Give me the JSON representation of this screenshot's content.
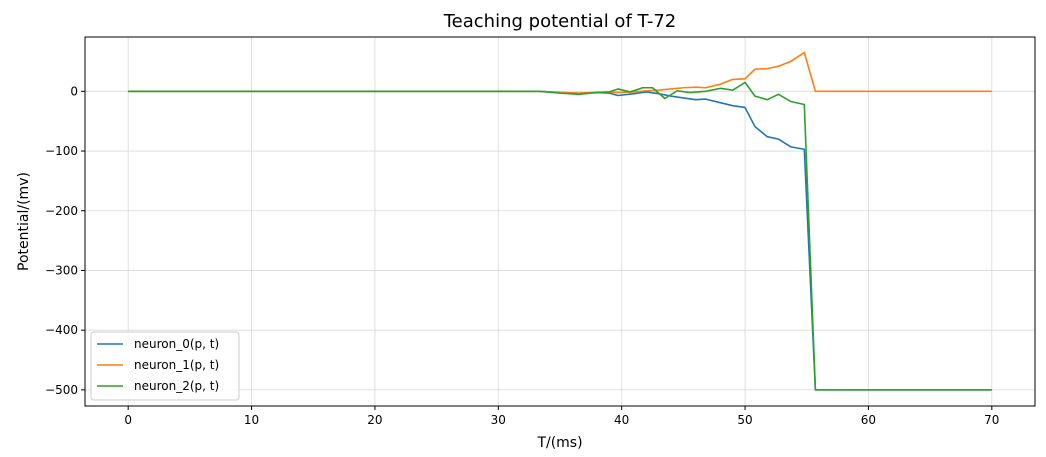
{
  "chart_data": {
    "type": "line",
    "title": "Teaching potential of T-72",
    "xlabel": "T/(ms)",
    "ylabel": "Potential/(mv)",
    "xlim": [
      -3.5,
      73.5
    ],
    "ylim": [
      -527,
      91
    ],
    "xticks": [
      0,
      10,
      20,
      30,
      40,
      50,
      60,
      70
    ],
    "yticks": [
      0,
      -100,
      -200,
      -300,
      -400,
      -500
    ],
    "grid": true,
    "legend_position": "lower-left",
    "series": [
      {
        "name": "neuron_0(p, t)",
        "color": "#1f77b4",
        "x": [
          0,
          33.3,
          35,
          36.5,
          38,
          39,
          39.7,
          41,
          42,
          43,
          44,
          45,
          46,
          46.8,
          48,
          49,
          50,
          50.8,
          51.8,
          52.7,
          53.7,
          54.8,
          55.7,
          70
        ],
        "y": [
          0,
          0,
          -2,
          -3,
          -2,
          -3,
          -7,
          -4,
          -1,
          -4,
          -8,
          -11,
          -14,
          -13,
          -19,
          -24,
          -27,
          -59,
          -76,
          -80,
          -93,
          -97,
          -500,
          -500
        ]
      },
      {
        "name": "neuron_1(p, t)",
        "color": "#ff7f0e",
        "x": [
          0,
          33.3,
          35,
          36.5,
          38,
          39,
          39.7,
          41,
          42,
          43,
          44,
          45,
          46,
          46.8,
          48,
          49,
          50,
          50.8,
          51.8,
          52.7,
          53.7,
          54.8,
          55.7,
          70
        ],
        "y": [
          0,
          0,
          -2,
          -3,
          -2,
          -1,
          -2,
          -1,
          1,
          2,
          4,
          6,
          7,
          6,
          12,
          20,
          21,
          37,
          38,
          42,
          50,
          65,
          0,
          0
        ]
      },
      {
        "name": "neuron_2(p, t)",
        "color": "#2ca02c",
        "x": [
          0,
          33.3,
          35,
          36.5,
          38,
          39,
          39.7,
          40.7,
          41.7,
          42.5,
          43.5,
          44.5,
          45.5,
          46.8,
          48,
          49,
          50,
          50.8,
          51.8,
          52.7,
          53.7,
          54.8,
          55.7,
          70
        ],
        "y": [
          0,
          0,
          -3,
          -5,
          -2,
          -1,
          4,
          -1,
          6,
          6,
          -12,
          1,
          -2,
          0,
          5,
          2,
          15,
          -8,
          -14,
          -5,
          -17,
          -22,
          -500,
          -500
        ]
      }
    ]
  }
}
